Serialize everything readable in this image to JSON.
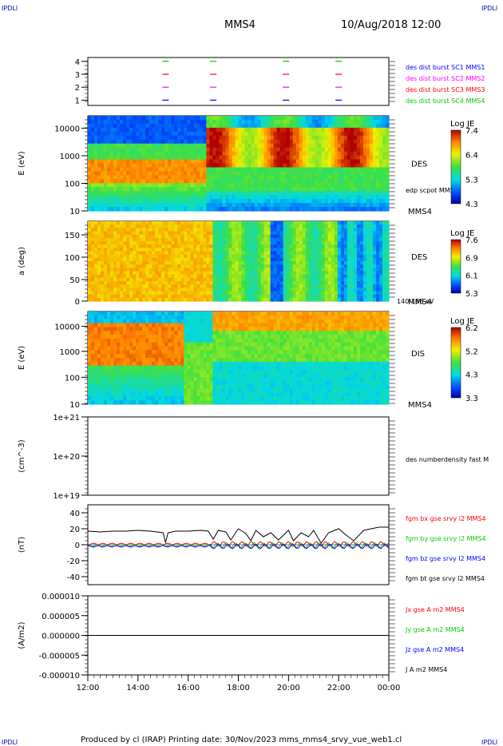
{
  "corner": {
    "tl": "IPDLI",
    "tr": "IPDLI",
    "bl": "IPDLI",
    "br": "IPDLI"
  },
  "header": {
    "title": "MMS4",
    "datetime": "10/Aug/2018 12:00"
  },
  "footer": {
    "text": "Produced by cl (IRAP)   Printing date: 30/Nov/2023   mms_mms4_srvy_vue_web1.cl"
  },
  "colors": {
    "mms1": "#0000ff",
    "mms2": "#ff00ff",
    "mms3": "#ff0000",
    "mms4": "#00cc00",
    "label_blue": "#0000aa"
  },
  "x_axis": {
    "ticks": [
      "12:00",
      "14:00",
      "16:00",
      "18:00",
      "20:00",
      "22:00",
      "00:00"
    ],
    "range_hours": [
      12,
      24
    ]
  },
  "chart_data": [
    {
      "type": "scatter",
      "title": "burst intervals",
      "y_ticks": [
        "4",
        "3",
        "2",
        "1"
      ],
      "legend": [
        "des dist burst SC1 MMS1",
        "des dist burst SC2 MMS2",
        "des dist burst SC3 MMS3",
        "des dist burst SC4 MMS4"
      ],
      "marker_times_hours": [
        15.1,
        17.0,
        19.9,
        22.0
      ]
    },
    {
      "type": "heatmap",
      "ylabel": "E (eV)",
      "y_ticks": [
        "10000",
        "1000",
        "100",
        "10"
      ],
      "label": "DES",
      "sublabel": "edp scpot MMS4",
      "right_label": "MMS4",
      "colorbar": {
        "title": "Log JE",
        "ticks": [
          "7.4",
          "6.4",
          "5.3",
          "4.3"
        ]
      }
    },
    {
      "type": "heatmap",
      "ylabel": "a (deg)",
      "y_ticks": [
        "150",
        "100",
        "50",
        "0"
      ],
      "label": "DES",
      "right_label": "MMS4",
      "sublabel": "140-186 eV",
      "colorbar": {
        "title": "Log JE",
        "ticks": [
          "7.6",
          "6.9",
          "6.1",
          "5.3"
        ]
      }
    },
    {
      "type": "heatmap",
      "ylabel": "E (eV)",
      "y_ticks": [
        "10000",
        "1000",
        "100",
        "10"
      ],
      "label": "DIS",
      "right_label": "MMS4",
      "colorbar": {
        "title": "Log JE",
        "ticks": [
          "6.2",
          "5.2",
          "4.3",
          "3.3"
        ]
      }
    },
    {
      "type": "line",
      "ylabel": "(cm^-3)",
      "y_ticks": [
        "1e+21",
        "1e+20",
        "1e+19"
      ],
      "legend": [
        "des numberdensity fast M"
      ]
    },
    {
      "type": "line",
      "ylabel": "(nT)",
      "y_ticks": [
        "40",
        "20",
        "0",
        "-20",
        "-40"
      ],
      "ylim": [
        -50,
        50
      ],
      "legend": [
        "fgm bx gse srvy l2 MMS4",
        "fgm by gse srvy l2 MMS4",
        "fgm bz gse srvy l2 MMS4",
        "fgm bt gse srvy l2 MMS4"
      ],
      "series_bt": {
        "x": [
          12,
          12.5,
          13,
          13.5,
          14,
          14.5,
          15,
          15.1,
          15.2,
          15.5,
          16,
          16.5,
          16.8,
          17,
          17.2,
          17.5,
          17.7,
          18,
          18.3,
          18.5,
          18.7,
          19,
          19.3,
          19.6,
          20,
          20.2,
          20.5,
          20.8,
          21,
          21.3,
          21.6,
          22,
          22.3,
          22.6,
          23,
          23.3,
          23.6,
          24
        ],
        "y": [
          17,
          16,
          17,
          17,
          18,
          17,
          15,
          3,
          15,
          17,
          17,
          18,
          17,
          7,
          18,
          16,
          6,
          20,
          14,
          5,
          18,
          10,
          15,
          6,
          18,
          5,
          15,
          10,
          18,
          2,
          15,
          20,
          12,
          5,
          18,
          20,
          22,
          22
        ]
      }
    },
    {
      "type": "line",
      "ylabel": "(A/m2)",
      "y_ticks": [
        "0.000010",
        "0.000005",
        "0.000000",
        "-0.000005",
        "-0.000010"
      ],
      "ylim": [
        -1e-05,
        1e-05
      ],
      "legend": [
        "Jx gse A m2 MMS4",
        "Jy gse A m2 MMS4",
        "Jz gse A m2 MMS4",
        "J A m2 MMS4"
      ]
    }
  ]
}
